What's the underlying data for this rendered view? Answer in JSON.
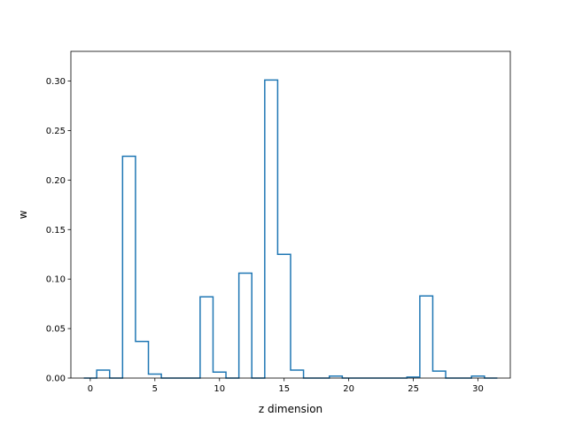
{
  "chart_data": {
    "type": "step",
    "title": "",
    "xlabel": "z dimension",
    "ylabel": "w",
    "xlim": [
      -1.5,
      32.5
    ],
    "ylim": [
      0,
      0.33
    ],
    "x_ticks": [
      0,
      5,
      10,
      15,
      20,
      25,
      30
    ],
    "x_tick_labels": [
      "0",
      "5",
      "10",
      "15",
      "20",
      "25",
      "30"
    ],
    "y_ticks": [
      0.0,
      0.05,
      0.1,
      0.15,
      0.2,
      0.25,
      0.3
    ],
    "y_tick_labels": [
      "0.00",
      "0.05",
      "0.10",
      "0.15",
      "0.20",
      "0.25",
      "0.30"
    ],
    "grid": false,
    "series": [
      {
        "color": "#1f77b4",
        "x": [
          0,
          1,
          2,
          3,
          4,
          5,
          6,
          7,
          8,
          9,
          10,
          11,
          12,
          13,
          14,
          15,
          16,
          17,
          18,
          19,
          20,
          21,
          22,
          23,
          24,
          25,
          26,
          27,
          28,
          29,
          30,
          31
        ],
        "values": [
          0.0,
          0.008,
          0.0,
          0.224,
          0.037,
          0.004,
          0.0,
          0.0,
          0.0,
          0.082,
          0.006,
          0.0,
          0.106,
          0.0,
          0.301,
          0.125,
          0.008,
          0.0,
          0.0,
          0.002,
          0.0,
          0.0,
          0.0,
          0.0,
          0.0,
          0.001,
          0.083,
          0.007,
          0.0,
          0.0,
          0.002,
          0.0
        ]
      }
    ]
  }
}
